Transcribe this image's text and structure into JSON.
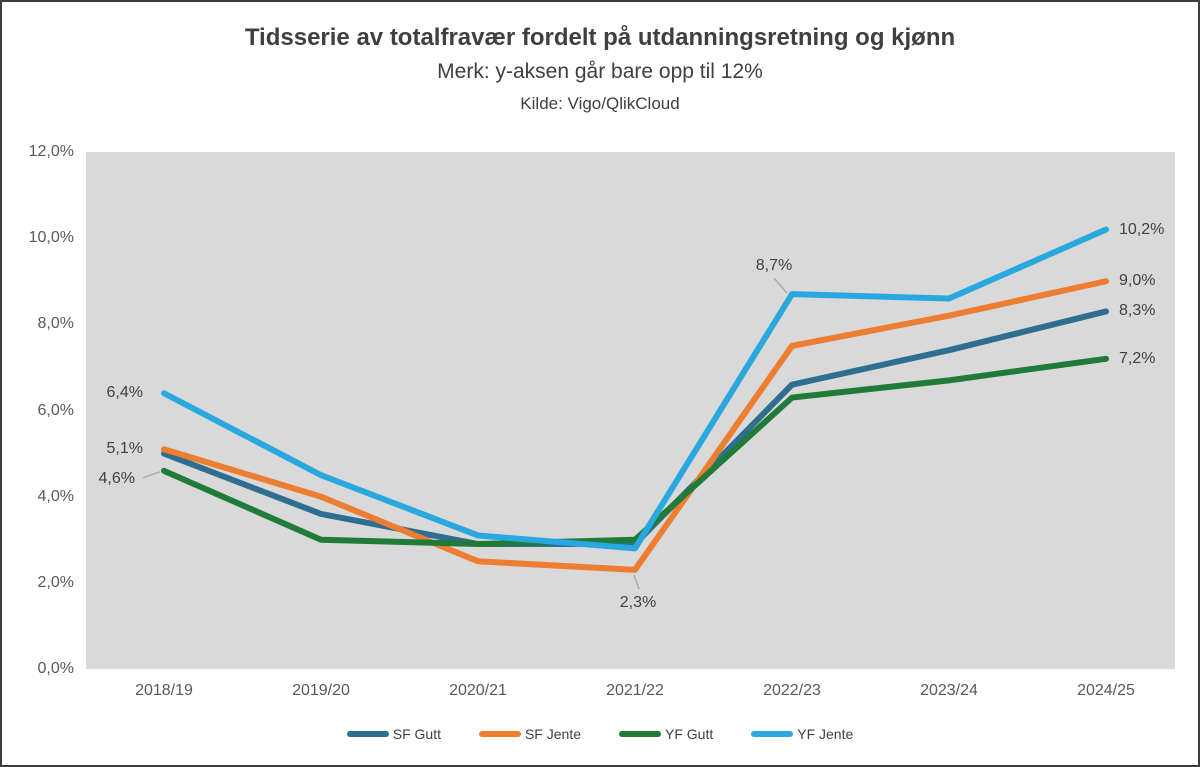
{
  "header": {
    "title": "Tidsserie av totalfravær fordelt på utdanningsretning og kjønn",
    "subtitle": "Merk: y-aksen går bare opp til 12%",
    "source": "Kilde: Vigo/QlikCloud"
  },
  "chart_data": {
    "type": "line",
    "title": "Tidsserie av totalfravær fordelt på utdanningsretning og kjønn",
    "subtitle": "Merk: y-aksen går bare opp til 12%",
    "source_note": "Kilde: Vigo/QlikCloud",
    "categories": [
      "2018/19",
      "2019/20",
      "2020/21",
      "2021/22",
      "2022/23",
      "2023/24",
      "2024/25"
    ],
    "series": [
      {
        "name": "SF Gutt",
        "color": "#2e6e91",
        "values": [
          5.0,
          3.6,
          2.9,
          2.9,
          6.6,
          7.4,
          8.3
        ]
      },
      {
        "name": "SF Jente",
        "color": "#ed7d31",
        "values": [
          5.1,
          4.0,
          2.5,
          2.3,
          7.5,
          8.2,
          9.0
        ]
      },
      {
        "name": "YF Gutt",
        "color": "#1f7b37",
        "values": [
          4.6,
          3.0,
          2.9,
          3.0,
          6.3,
          6.7,
          7.2
        ]
      },
      {
        "name": "YF Jente",
        "color": "#29a8e0",
        "values": [
          6.4,
          4.5,
          3.1,
          2.8,
          8.7,
          8.6,
          10.2
        ]
      }
    ],
    "y_axis": {
      "labels": [
        "0,0%",
        "2,0%",
        "4,0%",
        "6,0%",
        "8,0%",
        "10,0%",
        "12,0%"
      ],
      "values": [
        0,
        2,
        4,
        6,
        8,
        10,
        12
      ]
    },
    "ylim": [
      0,
      12
    ],
    "xlabel": "",
    "ylabel": "",
    "grid": false,
    "plot_background": "#d9d9d9",
    "legend_position": "bottom",
    "leader_line_color": "#a6a6a6",
    "data_labels": [
      {
        "text": "6,4%",
        "series": "YF Jente",
        "index": 0,
        "placement": "left"
      },
      {
        "text": "5,1%",
        "series": "SF Jente",
        "index": 0,
        "placement": "left"
      },
      {
        "text": "4,6%",
        "series": "YF Gutt",
        "index": 0,
        "placement": "left-leader"
      },
      {
        "text": "2,3%",
        "series": "SF Jente",
        "index": 3,
        "placement": "below-leader"
      },
      {
        "text": "8,7%",
        "series": "YF Jente",
        "index": 4,
        "placement": "above-leader"
      },
      {
        "text": "10,2%",
        "series": "YF Jente",
        "index": 6,
        "placement": "right"
      },
      {
        "text": "9,0%",
        "series": "SF Jente",
        "index": 6,
        "placement": "right"
      },
      {
        "text": "8,3%",
        "series": "SF Gutt",
        "index": 6,
        "placement": "right"
      },
      {
        "text": "7,2%",
        "series": "YF Gutt",
        "index": 6,
        "placement": "right"
      }
    ]
  }
}
